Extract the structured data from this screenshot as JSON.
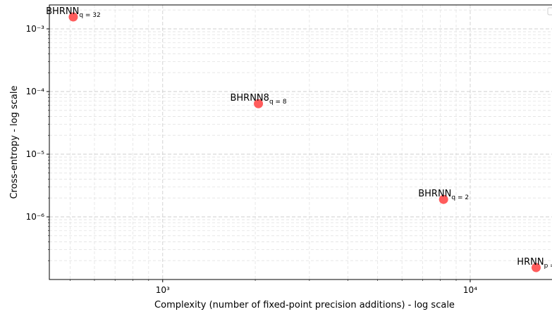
{
  "chart_data": {
    "type": "scatter",
    "xlabel": "Complexity (number of fixed-point precision additions) - log scale",
    "ylabel": "Cross-entropy - log scale",
    "x": [
      512,
      2048,
      8192,
      16384
    ],
    "series": [
      {
        "color": "#ff4a4a",
        "values": [
          0.00155,
          6.4e-05,
          1.9e-06,
          1.55e-07
        ]
      }
    ],
    "point_labels": [
      {
        "base": "BHRNN",
        "sub": "q = 32"
      },
      {
        "base": "BHRNN8",
        "sub": "q = 8"
      },
      {
        "base": "BHRNN",
        "sub": "q = 2"
      },
      {
        "base": "HRNN",
        "sub": "p ="
      }
    ],
    "xscale": "log",
    "yscale": "log",
    "xlim": [
      428,
      18450
    ],
    "ylim": [
      1e-07,
      0.00241
    ],
    "xticks": [
      {
        "value": 1000,
        "label": "10³"
      },
      {
        "value": 10000,
        "label": "10⁴"
      }
    ],
    "yticks": [
      {
        "value": 1e-06,
        "label": "10⁻⁶"
      },
      {
        "value": 1e-05,
        "label": "10⁻⁵"
      },
      {
        "value": 0.0001,
        "label": "10⁻⁴"
      },
      {
        "value": 0.001,
        "label": "10⁻³"
      }
    ],
    "xminorticks": [
      500,
      600,
      700,
      800,
      900,
      2000,
      3000,
      4000,
      5000,
      6000,
      7000,
      8000,
      9000
    ],
    "yminorticks": [
      2e-07,
      3e-07,
      4e-07,
      5e-07,
      6e-07,
      7e-07,
      8e-07,
      9e-07,
      2e-06,
      3e-06,
      4e-06,
      5e-06,
      6e-06,
      7e-06,
      8e-06,
      9e-06,
      2e-05,
      3e-05,
      4e-05,
      5e-05,
      6e-05,
      7e-05,
      8e-05,
      9e-05,
      0.0002,
      0.0003,
      0.0004,
      0.0005,
      0.0006,
      0.0007,
      0.0008,
      0.0009,
      0.002
    ],
    "grid": true
  }
}
